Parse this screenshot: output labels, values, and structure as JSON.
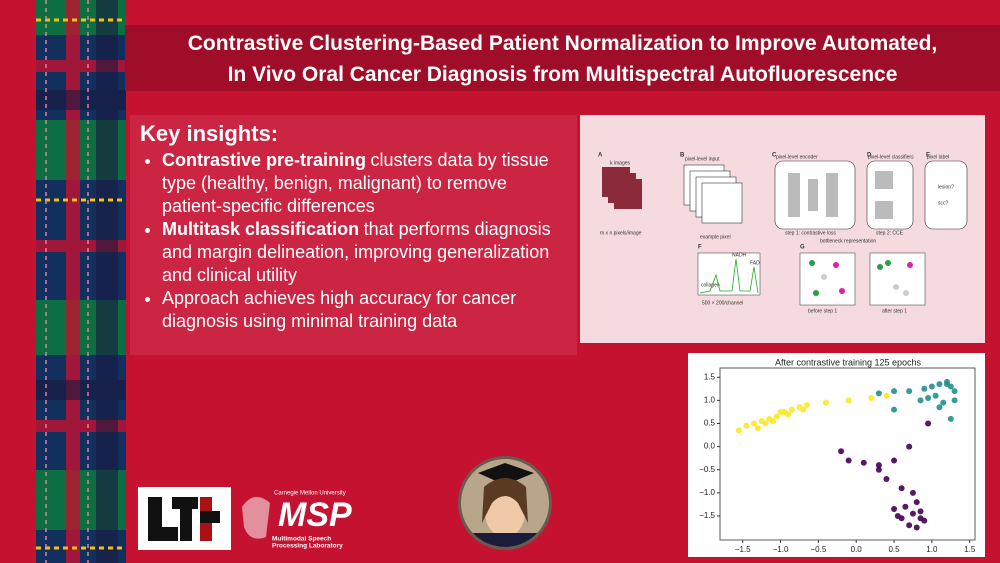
{
  "header": {
    "title_lines": [
      "Contrastive Clustering-Based Patient Normalization to Improve Automated,",
      "In Vivo Oral Cancer Diagnosis from Multispectral Autofluorescence"
    ]
  },
  "insights": {
    "heading": "Key insights:",
    "items": [
      {
        "bold": "Contrastive pre-training",
        "text": "clusters data by tissue type (healthy, benign, malignant) to remove patient-specific differences"
      },
      {
        "bold": "Multitask classification",
        "text": "that performs diagnosis and margin delineation, improving generalization and clinical utility"
      },
      {
        "text": "Approach achieves high accuracy for cancer diagnosis using minimal training data"
      }
    ]
  },
  "figure": {
    "panels": [
      "A",
      "B",
      "C",
      "D",
      "E",
      "F",
      "G"
    ],
    "labels": {
      "images": "k images",
      "pixels": "m x n pixels/image",
      "input": "pixel-level input",
      "encoder": "pixel-level encoder",
      "classifiers": "pixel-level classifiers",
      "label": "pixel label",
      "example": "example pixel",
      "step1": "step 1: contrastive loss",
      "step2": "step 2: CCE",
      "bottleneck": "bottleneck representation",
      "collagen": "collagen",
      "nadh": "NADH",
      "fad": "FAD",
      "channel": "500 × 200/channel",
      "before": "before step 1",
      "after": "after step 1",
      "lesion": "lesion?",
      "scc": "scc?"
    }
  },
  "logos": {
    "cmu": "Carnegie Mellon University",
    "msp": "MSP",
    "msp_lines": [
      "Multimodal Speech",
      "Processing Laboratory"
    ]
  },
  "chart_data": {
    "type": "scatter",
    "title": "After contrastive training 125 epochs",
    "xlim": [
      -1.8,
      1.57
    ],
    "ylim": [
      -2.02,
      1.7
    ],
    "xticks": [
      {
        "value": -1.5,
        "label": "−1.5"
      },
      {
        "value": -1,
        "label": "−1.0"
      },
      {
        "value": -0.5,
        "label": "−0.5"
      },
      {
        "value": 0,
        "label": "0.0"
      },
      {
        "value": 0.5,
        "label": "0.5"
      },
      {
        "value": 1,
        "label": "1.0"
      },
      {
        "value": 1.5,
        "label": "1.5"
      }
    ],
    "yticks": [
      {
        "value": 1.5,
        "label": "1.5"
      },
      {
        "value": 1,
        "label": "1.0"
      },
      {
        "value": 0.5,
        "label": "0.5"
      },
      {
        "value": 0,
        "label": "0.0"
      },
      {
        "value": -0.5,
        "label": "−0.5"
      },
      {
        "value": -1,
        "label": "−1.0"
      },
      {
        "value": -1.5,
        "label": "−1.5"
      }
    ],
    "series": [
      {
        "color": "#fde725",
        "x": [
          -1.55,
          -1.45,
          -1.35,
          -1.25,
          -1.15,
          -1.05,
          -0.95,
          -0.85,
          -0.75,
          -0.65,
          -1.3,
          -1.1,
          -0.9,
          -0.7,
          -0.4,
          -0.1,
          0.2,
          0.4,
          -1.0,
          -1.2
        ],
        "y": [
          0.35,
          0.45,
          0.5,
          0.55,
          0.6,
          0.65,
          0.75,
          0.8,
          0.85,
          0.9,
          0.4,
          0.55,
          0.7,
          0.8,
          0.95,
          1.0,
          1.05,
          1.1,
          0.75,
          0.5
        ]
      },
      {
        "color": "#21918c",
        "x": [
          0.3,
          0.5,
          0.7,
          0.9,
          1.0,
          1.1,
          1.2,
          1.25,
          1.3,
          1.05,
          1.15,
          0.95,
          1.2,
          0.85,
          1.3,
          0.5,
          1.25,
          1.1
        ],
        "y": [
          1.15,
          1.2,
          1.2,
          1.25,
          1.3,
          1.35,
          1.4,
          1.3,
          1.2,
          1.1,
          0.95,
          1.05,
          1.35,
          1.0,
          1.0,
          0.8,
          0.6,
          0.85
        ]
      },
      {
        "color": "#440154",
        "x": [
          0.95,
          0.7,
          0.5,
          0.3,
          0.1,
          -0.1,
          -0.2,
          0.6,
          0.75,
          0.8,
          0.85,
          0.65,
          0.9,
          0.55,
          0.7,
          0.8,
          0.6,
          0.75,
          0.5,
          0.85,
          0.3,
          0.4
        ],
        "y": [
          0.5,
          0.0,
          -0.3,
          -0.4,
          -0.35,
          -0.3,
          -0.1,
          -0.9,
          -1.0,
          -1.2,
          -1.4,
          -1.3,
          -1.6,
          -1.5,
          -1.7,
          -1.75,
          -1.55,
          -1.45,
          -1.35,
          -1.55,
          -0.5,
          -0.7
        ]
      }
    ]
  }
}
